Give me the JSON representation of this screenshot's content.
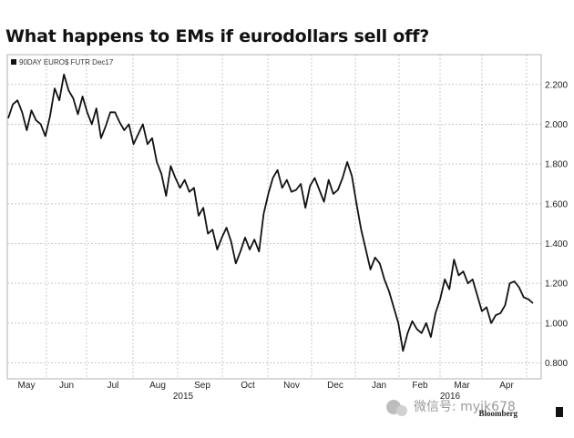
{
  "title": "What happens to EMs if eurodollars sell off?",
  "chart_data": {
    "type": "line",
    "legend": {
      "label": "90DAY EURO$ FUTR Dec17",
      "position": "top-left"
    },
    "y_ticks": [
      "0.800",
      "1.000",
      "1.200",
      "1.400",
      "1.600",
      "1.800",
      "2.000",
      "2.200"
    ],
    "ylim": [
      0.72,
      2.35
    ],
    "x_ticks": [
      "May",
      "Jun",
      "Jul",
      "Aug",
      "Sep",
      "Oct",
      "Nov",
      "Dec",
      "Jan",
      "Feb",
      "Mar",
      "Apr"
    ],
    "years": [
      "2015",
      "2016"
    ],
    "grid": true,
    "series": [
      {
        "values": [
          2.03,
          2.1,
          2.12,
          2.06,
          1.97,
          2.07,
          2.02,
          2.0,
          1.94,
          2.04,
          2.18,
          2.12,
          2.25,
          2.17,
          2.13,
          2.05,
          2.14,
          2.06,
          2.0,
          2.08,
          1.93,
          1.99,
          2.06,
          2.06,
          2.01,
          1.97,
          2.0,
          1.9,
          1.95,
          2.0,
          1.9,
          1.93,
          1.81,
          1.75,
          1.64,
          1.79,
          1.73,
          1.68,
          1.72,
          1.66,
          1.68,
          1.54,
          1.58,
          1.45,
          1.47,
          1.37,
          1.43,
          1.48,
          1.41,
          1.3,
          1.36,
          1.43,
          1.37,
          1.42,
          1.36,
          1.55,
          1.65,
          1.73,
          1.77,
          1.68,
          1.72,
          1.66,
          1.67,
          1.7,
          1.58,
          1.69,
          1.73,
          1.67,
          1.61,
          1.72,
          1.65,
          1.67,
          1.73,
          1.81,
          1.74,
          1.6,
          1.47,
          1.37,
          1.27,
          1.33,
          1.3,
          1.22,
          1.16,
          1.08,
          1.0,
          0.86,
          0.95,
          1.01,
          0.97,
          0.95,
          1.0,
          0.93,
          1.05,
          1.12,
          1.22,
          1.17,
          1.32,
          1.24,
          1.26,
          1.2,
          1.22,
          1.14,
          1.06,
          1.08,
          1.0,
          1.04,
          1.05,
          1.09,
          1.2,
          1.21,
          1.18,
          1.13,
          1.12,
          1.1
        ]
      }
    ]
  },
  "watermark": {
    "text": "微信号: myjk678"
  },
  "source_brand": "Bloomberg"
}
